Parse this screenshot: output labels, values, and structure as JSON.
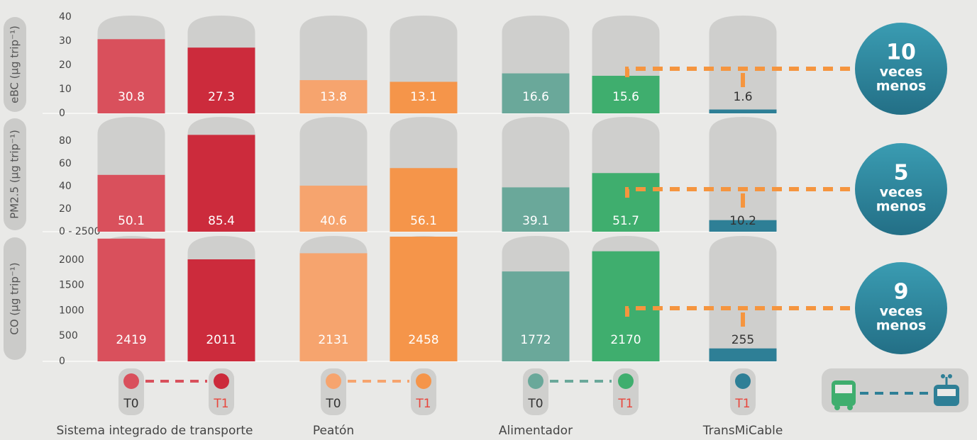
{
  "chart_data": [
    {
      "type": "bar",
      "ylabel": "eBC (µg trip⁻¹)",
      "ylim": [
        0,
        40
      ],
      "yticks": [
        0,
        10,
        20,
        30,
        40
      ],
      "values": [
        30.8,
        27.3,
        13.8,
        13.1,
        16.6,
        15.6,
        1.6
      ]
    },
    {
      "type": "bar",
      "ylabel": "PM2.5 (µg trip⁻¹)",
      "ylim": [
        0,
        100
      ],
      "yticks": [
        {
          "value": 0,
          "label": "0 - 2500"
        },
        20,
        40,
        60,
        80
      ],
      "values": [
        50.1,
        85.4,
        40.6,
        56.1,
        39.1,
        51.7,
        10.2
      ]
    },
    {
      "type": "bar",
      "ylabel": "CO (µg trip⁻¹)",
      "ylim": [
        0,
        2500
      ],
      "yticks": [
        0,
        500,
        1000,
        1500,
        2000
      ],
      "values": [
        2419,
        2011,
        2131,
        2458,
        1772,
        2170,
        255
      ]
    }
  ],
  "bar_colors": [
    "#d9505c",
    "#cc2b3c",
    "#f6a46e",
    "#f5954a",
    "#6aa89a",
    "#3fae6e",
    "#2e7f96"
  ],
  "groups": [
    {
      "name": "Sistema integrado de transporte",
      "labels": [
        "T0",
        "T1"
      ]
    },
    {
      "name": "Peatón",
      "labels": [
        "T0",
        "T1"
      ]
    },
    {
      "name": "Alimentador",
      "labels": [
        "T0",
        "T1"
      ]
    },
    {
      "name": "TransMiCable",
      "labels": [
        "T1"
      ]
    }
  ],
  "comparisons": [
    {
      "number": 10,
      "line1": "veces",
      "line2": "menos"
    },
    {
      "number": 5,
      "line1": "veces",
      "line2": "menos"
    },
    {
      "number": 9,
      "line1": "veces",
      "line2": "menos"
    }
  ]
}
